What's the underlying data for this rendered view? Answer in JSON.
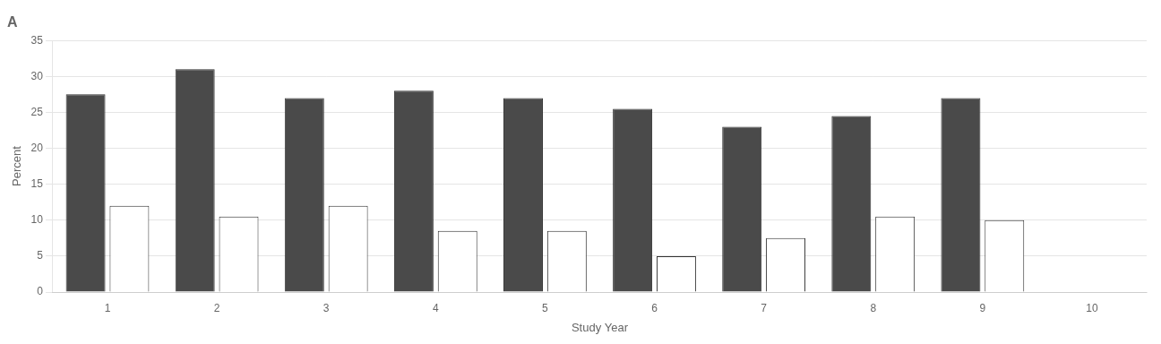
{
  "chart_data": {
    "type": "bar",
    "title": "A",
    "x_label": "Study Year",
    "y_label": "Percent",
    "categories": [
      "1",
      "2",
      "3",
      "4",
      "5",
      "6",
      "7",
      "8",
      "9",
      "10"
    ],
    "series": [
      {
        "color": "#4a4a4a",
        "values": [
          27.5,
          31.0,
          27.0,
          28.0,
          27.0,
          25.5,
          23.0,
          24.5,
          27.0,
          0
        ]
      },
      {
        "color": "#ffffff",
        "values": [
          12.0,
          10.5,
          12.0,
          8.5,
          8.5,
          5.0,
          7.5,
          10.5,
          10.0,
          0
        ]
      }
    ],
    "ylim": [
      0,
      35
    ],
    "yticks": [
      0,
      5,
      10,
      15,
      20,
      25,
      30,
      35
    ],
    "grid": true
  }
}
